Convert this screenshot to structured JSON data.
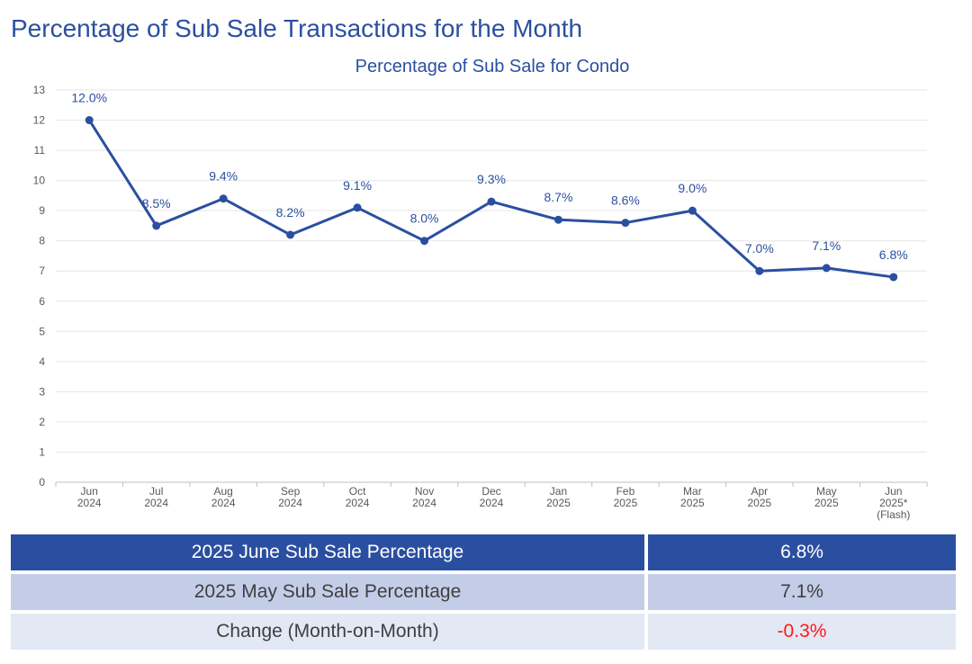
{
  "page": {
    "title": "Percentage of Sub Sale Transactions for the Month"
  },
  "colors": {
    "line": "#2b4fa0",
    "label": "#2b4fa0",
    "axis_text": "#595959",
    "gridline": "#e6e6e6",
    "negative": "#ff1a1a"
  },
  "chart_data": {
    "type": "line",
    "title": "Percentage of Sub Sale for Condo",
    "categories": [
      [
        "Jun",
        "2024"
      ],
      [
        "Jul",
        "2024"
      ],
      [
        "Aug",
        "2024"
      ],
      [
        "Sep",
        "2024"
      ],
      [
        "Oct",
        "2024"
      ],
      [
        "Nov",
        "2024"
      ],
      [
        "Dec",
        "2024"
      ],
      [
        "Jan",
        "2025"
      ],
      [
        "Feb",
        "2025"
      ],
      [
        "Mar",
        "2025"
      ],
      [
        "Apr",
        "2025"
      ],
      [
        "May",
        "2025"
      ],
      [
        "Jun",
        "2025*",
        "(Flash)"
      ]
    ],
    "series": [
      {
        "values": [
          12.0,
          8.5,
          9.4,
          8.2,
          9.1,
          8.0,
          9.3,
          8.7,
          8.6,
          9.0,
          7.0,
          7.1,
          6.8
        ],
        "labels": [
          "12.0%",
          "8.5%",
          "9.4%",
          "8.2%",
          "9.1%",
          "8.0%",
          "9.3%",
          "8.7%",
          "8.6%",
          "9.0%",
          "7.0%",
          "7.1%",
          "6.8%"
        ]
      }
    ],
    "ylim": [
      0,
      13
    ],
    "yticks": [
      "0",
      "1",
      "2",
      "3",
      "4",
      "5",
      "6",
      "7",
      "8",
      "9",
      "10",
      "11",
      "12",
      "13"
    ],
    "grid": true,
    "legend": "none"
  },
  "summary": [
    {
      "label": "2025 June Sub Sale Percentage",
      "value": "6.8%"
    },
    {
      "label": "2025 May Sub Sale Percentage",
      "value": "7.1%"
    },
    {
      "label": "Change (Month-on-Month)",
      "value": "-0.3%"
    }
  ]
}
